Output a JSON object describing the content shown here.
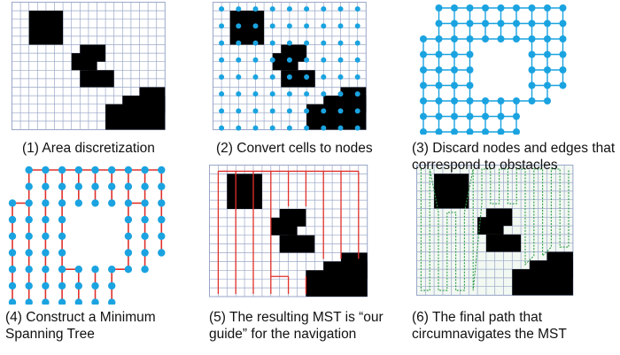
{
  "panels": [
    {
      "caption_lines": [
        "(1) Area discretization"
      ]
    },
    {
      "caption_lines": [
        "(2) Convert cells to nodes"
      ]
    },
    {
      "caption_lines": [
        "(3) Discard nodes and edges that",
        "correspond to obstacles"
      ]
    },
    {
      "caption_lines": [
        "(4) Construct a Minimum",
        "Spanning Tree"
      ]
    },
    {
      "caption_lines": [
        "(5) The resulting MST is “our",
        "guide” for the navigation"
      ]
    },
    {
      "caption_lines": [
        "(6) The final path that",
        "circumnavigates the MST"
      ]
    }
  ],
  "colors": {
    "grid": "#9aa7c8",
    "obstacle": "#000000",
    "node": "#1aa3e0",
    "mst_edge": "#e0302a",
    "path": "#2e9a4a",
    "panel6_background": "#f2f8f2"
  }
}
